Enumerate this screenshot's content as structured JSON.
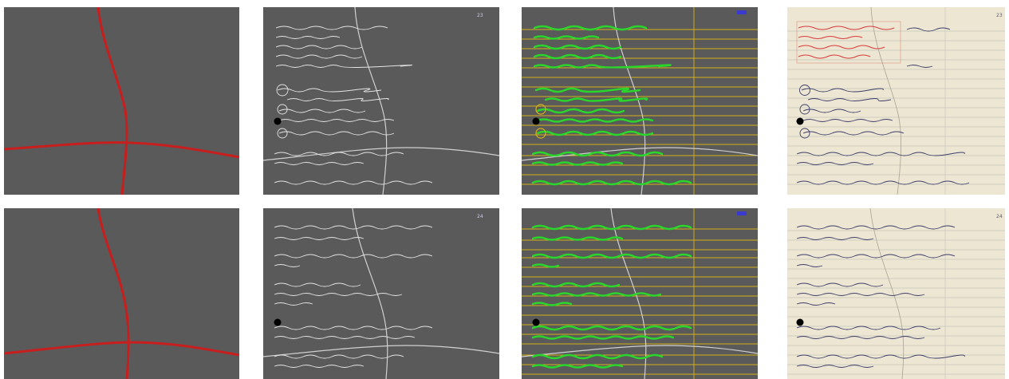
{
  "figure": {
    "rows": 2,
    "columns": [
      "line-mask",
      "binarized-scan",
      "detected-text-lines",
      "original-scan"
    ]
  },
  "page_numbers": {
    "row1": "23",
    "row2": "24"
  },
  "colors": {
    "mask_background": "#5a5a5a",
    "separator_line": "#c81e1e",
    "ink_highlight": "#2bd62b",
    "baseline": "#d4b21a",
    "paper": "#ece6d2",
    "paper_rule": "#c9c6bd",
    "pen_ink": "#3c3c6a",
    "red_marker": "#d83a3a",
    "hole_dot": "#000000"
  }
}
